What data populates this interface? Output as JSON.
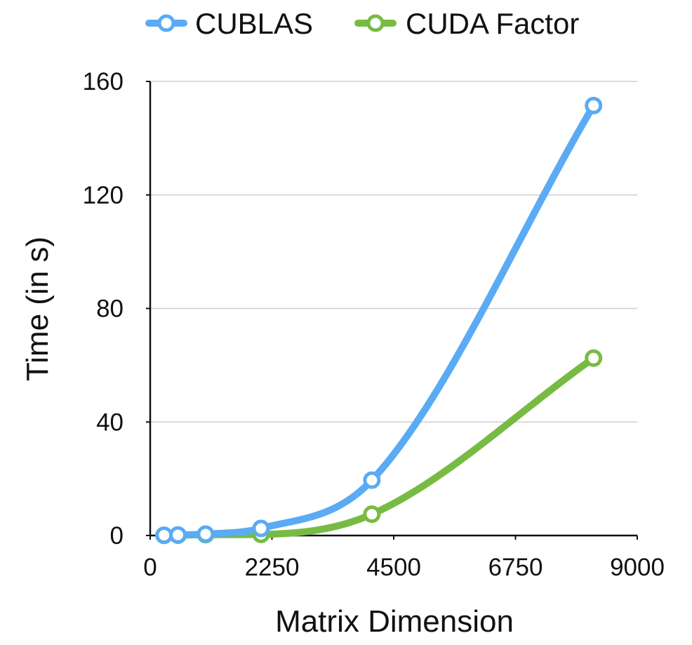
{
  "chart_data": {
    "type": "line",
    "xlabel": "Matrix Dimension",
    "ylabel": "Time (in s)",
    "xlim": [
      0,
      9000
    ],
    "ylim": [
      0,
      160
    ],
    "x_ticks": [
      "0",
      "2250",
      "4500",
      "6750",
      "9000"
    ],
    "y_ticks": [
      "0",
      "40",
      "80",
      "120",
      "160"
    ],
    "grid": "horizontal",
    "legend_position": "top",
    "smooth": true,
    "series": [
      {
        "name": "CUBLAS",
        "color": "#5aabf4",
        "points": [
          [
            256,
            0.1
          ],
          [
            512,
            0.2
          ],
          [
            1024,
            0.5
          ],
          [
            2048,
            2.5
          ],
          [
            4096,
            19.5
          ],
          [
            8192,
            151.5
          ]
        ]
      },
      {
        "name": "CUDA Factor",
        "color": "#77bb44",
        "points": [
          [
            256,
            0.05
          ],
          [
            512,
            0.1
          ],
          [
            1024,
            0.3
          ],
          [
            2048,
            0.4
          ],
          [
            4096,
            7.5
          ],
          [
            8192,
            62.5
          ]
        ]
      }
    ]
  }
}
